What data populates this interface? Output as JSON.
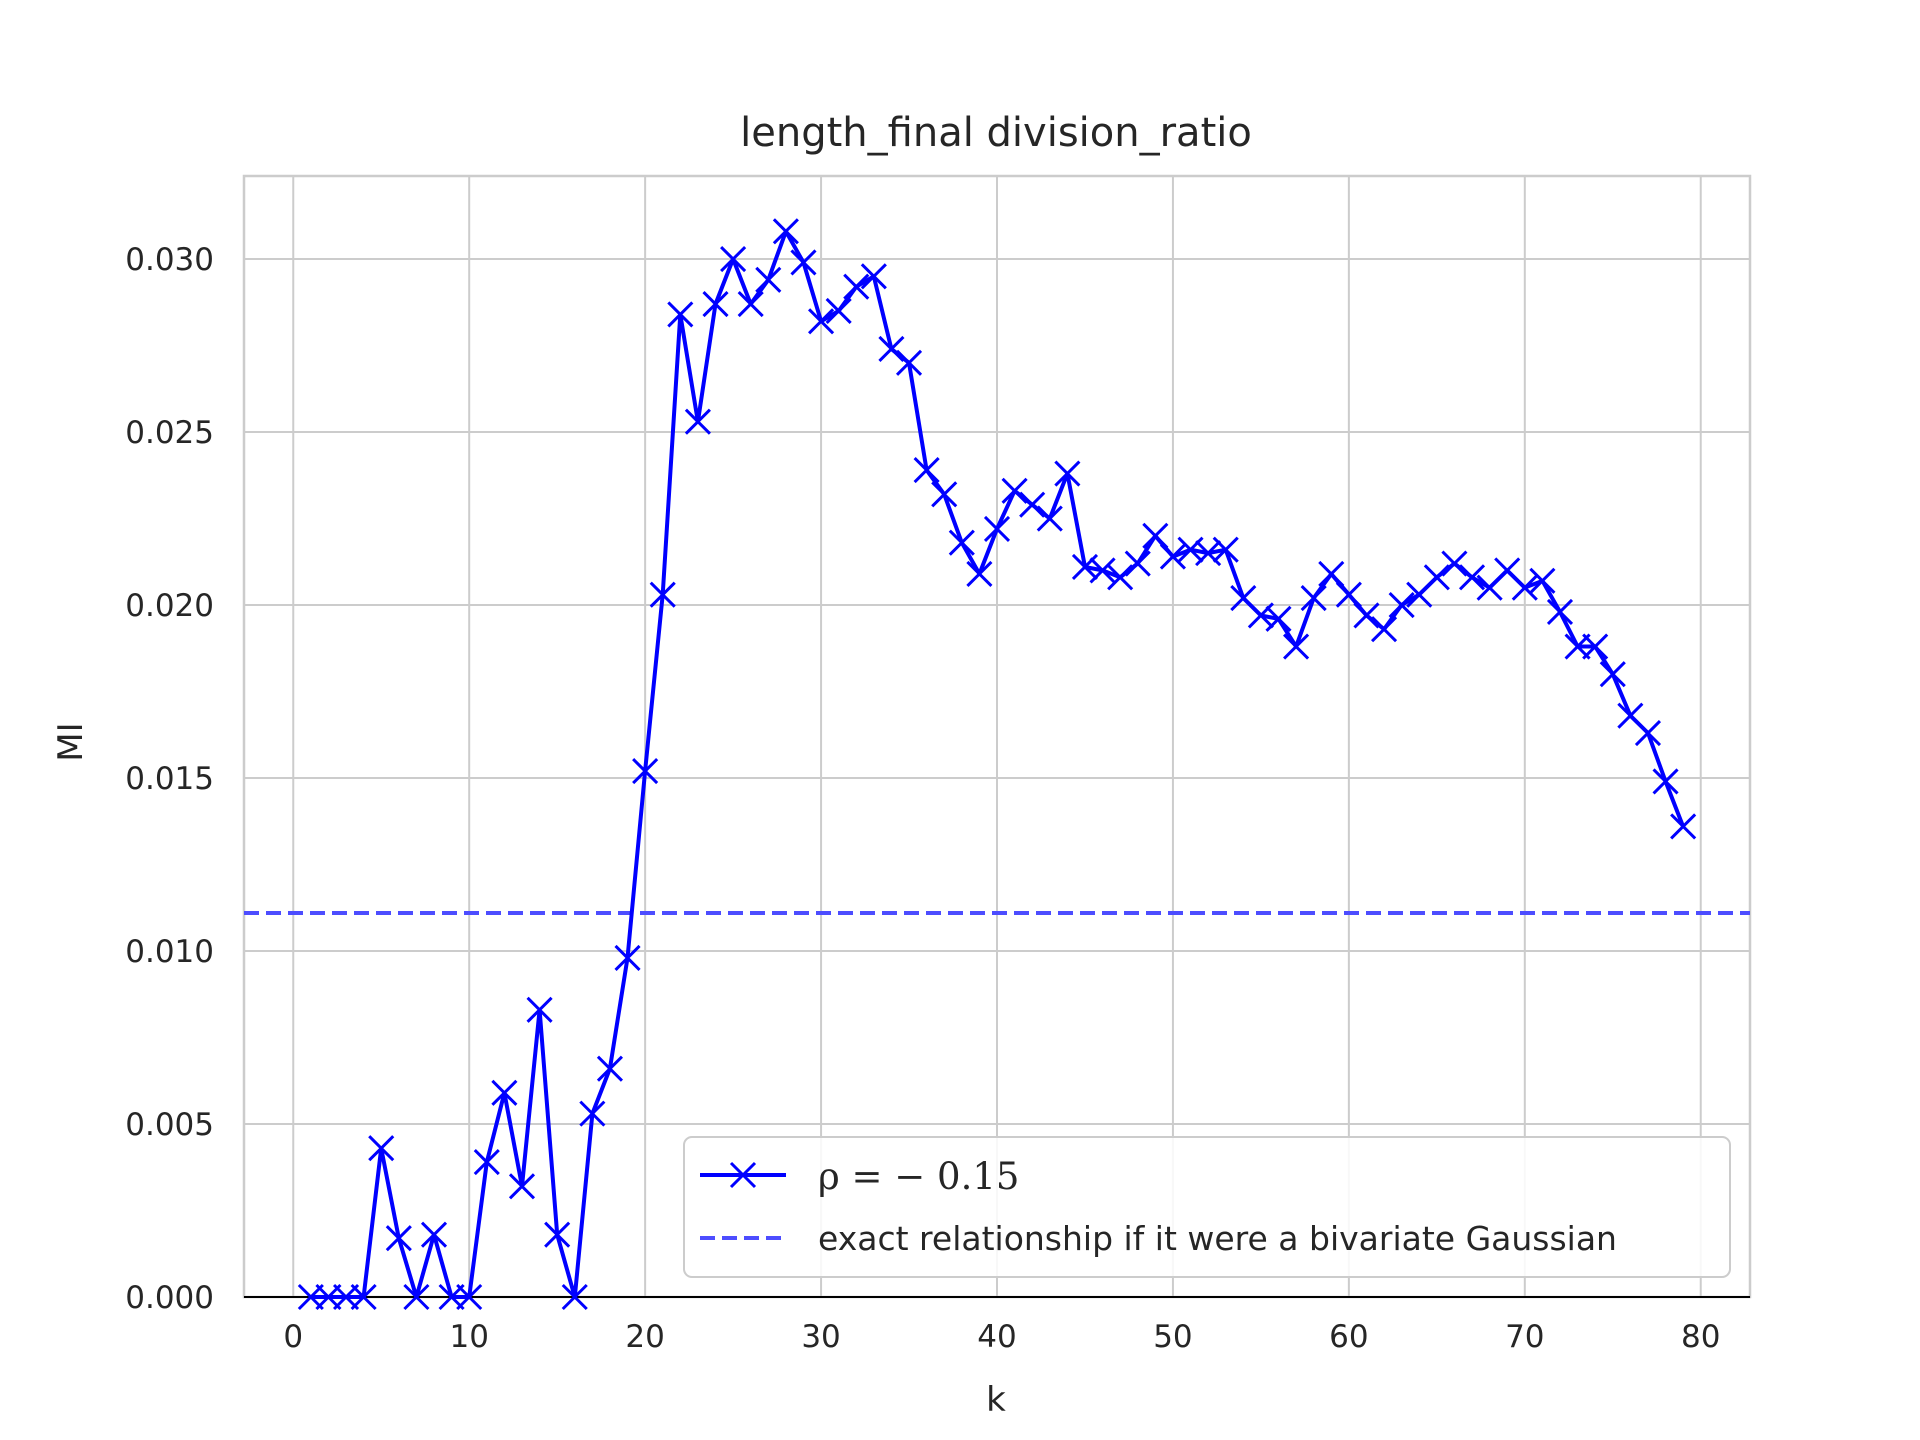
{
  "chart_data": {
    "type": "line",
    "title": "length_final division_ratio",
    "xlabel": "k",
    "ylabel": "MI",
    "xlim": [
      -2.8,
      82.8
    ],
    "ylim": [
      0.0,
      0.0324
    ],
    "xticks": [
      0,
      10,
      20,
      30,
      40,
      50,
      60,
      70,
      80
    ],
    "yticks": [
      0.0,
      0.005,
      0.01,
      0.015,
      0.02,
      0.025,
      0.03
    ],
    "ytick_labels": [
      "0.000",
      "0.005",
      "0.010",
      "0.015",
      "0.020",
      "0.025",
      "0.030"
    ],
    "grid": true,
    "legend_position": "lower-right",
    "series": [
      {
        "name": "ρ = − 0.15",
        "color": "#0000ff",
        "style": "solid",
        "marker": "x",
        "x": [
          1,
          2,
          3,
          4,
          5,
          6,
          7,
          8,
          9,
          10,
          11,
          12,
          13,
          14,
          15,
          16,
          17,
          18,
          19,
          20,
          21,
          22,
          23,
          24,
          25,
          26,
          27,
          28,
          29,
          30,
          31,
          32,
          33,
          34,
          35,
          36,
          37,
          38,
          39,
          40,
          41,
          42,
          43,
          44,
          45,
          46,
          47,
          48,
          49,
          50,
          51,
          52,
          53,
          54,
          55,
          56,
          57,
          58,
          59,
          60,
          61,
          62,
          63,
          64,
          65,
          66,
          67,
          68,
          69,
          70,
          71,
          72,
          73,
          74,
          75,
          76,
          77,
          78,
          79
        ],
        "y": [
          0.0,
          0.0,
          0.0,
          0.0,
          0.0043,
          0.0017,
          0.0,
          0.0018,
          0.0,
          0.0,
          0.0039,
          0.0059,
          0.0032,
          0.0083,
          0.0018,
          0.0,
          0.0053,
          0.0066,
          0.0098,
          0.0152,
          0.0203,
          0.0284,
          0.0253,
          0.0287,
          0.03,
          0.0287,
          0.0294,
          0.0308,
          0.0299,
          0.0282,
          0.0285,
          0.0292,
          0.0295,
          0.0274,
          0.027,
          0.0239,
          0.0232,
          0.0218,
          0.0209,
          0.0222,
          0.0233,
          0.0229,
          0.0225,
          0.0238,
          0.0211,
          0.021,
          0.0208,
          0.0212,
          0.022,
          0.0214,
          0.0216,
          0.0215,
          0.0216,
          0.0202,
          0.0197,
          0.0196,
          0.0188,
          0.0202,
          0.0209,
          0.0203,
          0.0197,
          0.0193,
          0.02,
          0.0203,
          0.0208,
          0.0212,
          0.0208,
          0.0205,
          0.021,
          0.0205,
          0.0207,
          0.0198,
          0.0188,
          0.0188,
          0.018,
          0.0168,
          0.0163,
          0.0149,
          0.0136
        ]
      },
      {
        "name": "exact relationship if it were a bivariate Gaussian",
        "color": "#4d4dff",
        "style": "dashed",
        "y_constant": 0.0111
      }
    ]
  }
}
